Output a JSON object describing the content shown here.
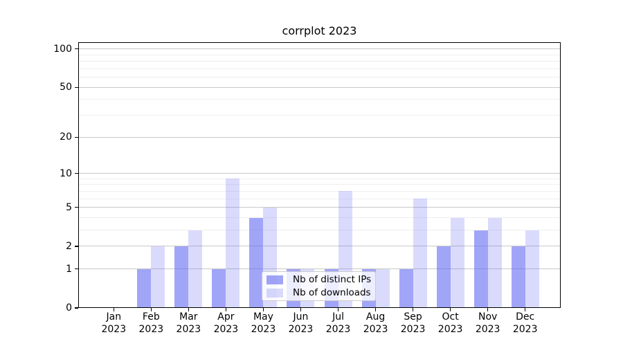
{
  "figure": {
    "title": "corrplot 2023"
  },
  "chart_data": {
    "type": "bar",
    "title": "corrplot 2023",
    "categories": [
      "Jan",
      "Feb",
      "Mar",
      "Apr",
      "May",
      "Jun",
      "Jul",
      "Aug",
      "Sep",
      "Oct",
      "Nov",
      "Dec"
    ],
    "category_year": "2023",
    "series": [
      {
        "name": "Nb of distinct IPs",
        "values": [
          0,
          1,
          2,
          1,
          4,
          1,
          1,
          1,
          1,
          2,
          3,
          2
        ],
        "color": "rgba(99, 105, 241, 0.60)"
      },
      {
        "name": "Nb of downloads",
        "values": [
          0,
          2,
          3,
          9,
          5,
          1,
          7,
          1,
          6,
          4,
          4,
          3
        ],
        "color": "rgba(99, 105, 241, 0.24)"
      }
    ],
    "xlabel": "",
    "ylabel": "",
    "yscale": "log1p",
    "ylim": [
      0,
      113
    ],
    "yticks": [
      0,
      1,
      2,
      5,
      10,
      20,
      50,
      100
    ],
    "yticks_minor": [
      3,
      4,
      6,
      7,
      8,
      9,
      30,
      40,
      60,
      70,
      80,
      90
    ],
    "grid": {
      "on": true,
      "major_color": "#c8c8c8",
      "minor_color": "#efefef"
    },
    "legend": {
      "position": "lower-center-inside"
    },
    "axis_color": "#000000"
  }
}
